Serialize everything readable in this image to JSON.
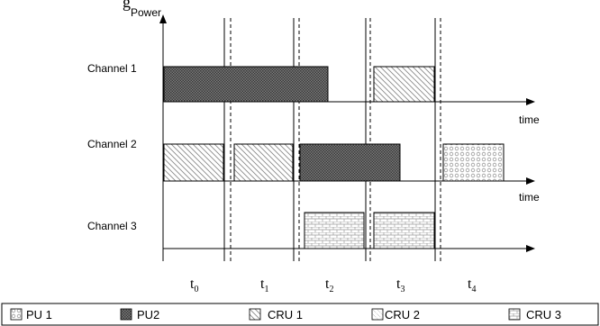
{
  "diagram": {
    "y_axis_label": "Power",
    "x_axis_label_1": "time",
    "x_axis_label_2": "time",
    "channels": [
      {
        "name": "Channel 1"
      },
      {
        "name": "Channel 2"
      },
      {
        "name": "Channel 3"
      }
    ],
    "slots": [
      {
        "main": "t",
        "sub": "0"
      },
      {
        "main": "t",
        "sub": "1"
      },
      {
        "main": "t",
        "sub": "2"
      },
      {
        "main": "t",
        "sub": "3"
      },
      {
        "main": "t",
        "sub": "4"
      }
    ],
    "occupancy": [
      {
        "channel": "Channel 1",
        "slots": [
          "t0",
          "t1",
          "t2"
        ],
        "user": "PU2"
      },
      {
        "channel": "Channel 1",
        "slots": [
          "t3"
        ],
        "user": "CRU 1"
      },
      {
        "channel": "Channel 2",
        "slots": [
          "t0"
        ],
        "user": "CRU 1"
      },
      {
        "channel": "Channel 2",
        "slots": [
          "t1"
        ],
        "user": "CRU 1"
      },
      {
        "channel": "Channel 2",
        "slots": [
          "t2"
        ],
        "user": "PU2"
      },
      {
        "channel": "Channel 2",
        "slots": [
          "t4"
        ],
        "user": "PU 1"
      },
      {
        "channel": "Channel 3",
        "slots": [
          "t2"
        ],
        "user": "CRU 3"
      },
      {
        "channel": "Channel 3",
        "slots": [
          "t3"
        ],
        "user": "CRU 3"
      }
    ]
  },
  "legend": {
    "items": [
      {
        "label": "PU 1",
        "pattern": "pu1"
      },
      {
        "label": "PU2",
        "pattern": "pu2"
      },
      {
        "label": "CRU 1",
        "pattern": "cru1"
      },
      {
        "label": "CRU 2",
        "pattern": "cru2"
      },
      {
        "label": "CRU 3",
        "pattern": "cru3"
      }
    ]
  }
}
